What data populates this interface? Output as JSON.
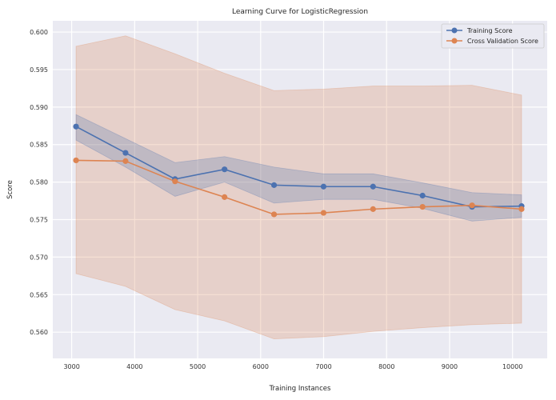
{
  "chart_data": {
    "type": "line",
    "title": "Learning Curve for LogisticRegression",
    "xlabel": "Training Instances",
    "ylabel": "Score",
    "xlim": [
      2700,
      10550
    ],
    "ylim": [
      0.5565,
      0.6015
    ],
    "xticks": [
      3000,
      4000,
      5000,
      6000,
      7000,
      8000,
      9000,
      10000
    ],
    "yticks": [
      0.56,
      0.565,
      0.57,
      0.575,
      0.58,
      0.585,
      0.59,
      0.595,
      0.6
    ],
    "xtick_labels": [
      "3000",
      "4000",
      "5000",
      "6000",
      "7000",
      "8000",
      "9000",
      "10000"
    ],
    "ytick_labels": [
      "0.560",
      "0.565",
      "0.570",
      "0.575",
      "0.580",
      "0.585",
      "0.590",
      "0.595",
      "0.600"
    ],
    "grid": true,
    "legend_position": "top-right",
    "x": [
      3069,
      3855,
      4641,
      5427,
      6213,
      6999,
      7785,
      8571,
      9357,
      10143
    ],
    "series": [
      {
        "name": "Training Score",
        "color": "#4c72b0",
        "values": [
          0.5874,
          0.5839,
          0.5804,
          0.5817,
          0.5796,
          0.5794,
          0.5794,
          0.5782,
          0.5767,
          0.5768
        ],
        "band_upper": [
          0.589,
          0.5858,
          0.5826,
          0.5834,
          0.582,
          0.5811,
          0.5811,
          0.5799,
          0.5786,
          0.5783
        ],
        "band_lower": [
          0.5856,
          0.582,
          0.5781,
          0.58,
          0.5772,
          0.5777,
          0.5777,
          0.5765,
          0.5748,
          0.5753
        ]
      },
      {
        "name": "Cross Validation Score",
        "color": "#dd8452",
        "values": [
          0.5829,
          0.5828,
          0.5801,
          0.578,
          0.5757,
          0.5759,
          0.5764,
          0.5767,
          0.5769,
          0.5764
        ],
        "band_upper": [
          0.5981,
          0.5995,
          0.5971,
          0.5945,
          0.5922,
          0.5924,
          0.5928,
          0.5928,
          0.5929,
          0.5916
        ],
        "band_lower": [
          0.5678,
          0.5661,
          0.563,
          0.5615,
          0.5591,
          0.5594,
          0.5601,
          0.5606,
          0.561,
          0.5612
        ]
      }
    ]
  }
}
